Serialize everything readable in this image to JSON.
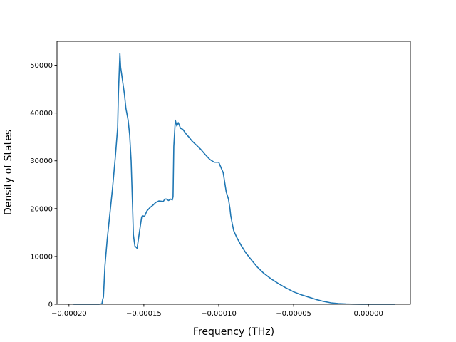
{
  "chart_data": {
    "type": "line",
    "title": "",
    "xlabel": "Frequency (THz)",
    "ylabel": "Density of States",
    "xlim": [
      -0.000208,
      2.8e-05
    ],
    "ylim": [
      0,
      55000
    ],
    "grid": false,
    "legend": "none",
    "x_ticks": [
      {
        "value": -0.0002,
        "label": "−0.00020"
      },
      {
        "value": -0.00015,
        "label": "−0.00015"
      },
      {
        "value": -0.0001,
        "label": "−0.00010"
      },
      {
        "value": -5e-05,
        "label": "−0.00005"
      },
      {
        "value": 0,
        "label": "0.00000"
      }
    ],
    "y_ticks": [
      {
        "value": 0,
        "label": "0"
      },
      {
        "value": 10000,
        "label": "10000"
      },
      {
        "value": 20000,
        "label": "20000"
      },
      {
        "value": 30000,
        "label": "30000"
      },
      {
        "value": 40000,
        "label": "40000"
      },
      {
        "value": 50000,
        "label": "50000"
      }
    ],
    "series": [
      {
        "color": "#1f77b4",
        "x": [
          -0.000197,
          -0.00018,
          -0.000178,
          -0.0001775,
          -0.000177,
          -0.000176,
          -0.0001745,
          -0.000173,
          -0.000171,
          -0.000169,
          -0.0001675,
          -0.000167,
          -0.000166,
          -0.0001655,
          -0.000165,
          -0.000163,
          -0.000162,
          -0.0001605,
          -0.0001595,
          -0.0001585,
          -0.0001575,
          -0.000157,
          -0.000156,
          -0.0001545,
          -0.000153,
          -0.0001515,
          -0.000151,
          -0.0001495,
          -0.000148,
          -0.000146,
          -0.000144,
          -0.000142,
          -0.00014,
          -0.000137,
          -0.000136,
          -0.000135,
          -0.0001335,
          -0.000132,
          -0.000131,
          -0.0001305,
          -0.00013,
          -0.000129,
          -0.000128,
          -0.000127,
          -0.0001255,
          -0.000124,
          -0.000122,
          -0.00012,
          -0.000118,
          -0.000115,
          -0.000112,
          -0.000109,
          -0.000106,
          -0.000103,
          -0.0001,
          -9.7e-05,
          -9.5e-05,
          -9.35e-05,
          -9.25e-05,
          -9.2e-05,
          -9.1e-05,
          -9e-05,
          -8.8e-05,
          -8.5e-05,
          -8.2e-05,
          -7.8e-05,
          -7.4e-05,
          -7e-05,
          -6.5e-05,
          -6e-05,
          -5.5e-05,
          -5e-05,
          -4.5e-05,
          -4e-05,
          -3.5e-05,
          -3e-05,
          -2.5e-05,
          -2e-05,
          -1.5e-05,
          -1e-05,
          -5e-06,
          0,
          5e-06,
          9e-06,
          1.4e-05,
          1.8e-05
        ],
        "y": [
          0,
          0,
          100,
          1000,
          1500,
          8000,
          13500,
          18000,
          24000,
          31000,
          37000,
          44000,
          52500,
          49500,
          48500,
          44000,
          41000,
          38500,
          35500,
          30000,
          20000,
          14500,
          12200,
          11700,
          15000,
          18200,
          18500,
          18400,
          19500,
          20200,
          20700,
          21300,
          21600,
          21500,
          22000,
          22000,
          21700,
          22000,
          21800,
          22500,
          33000,
          38500,
          37300,
          38000,
          36800,
          36600,
          35700,
          35000,
          34200,
          33300,
          32400,
          31300,
          30300,
          29700,
          29700,
          27500,
          23500,
          22000,
          20000,
          18600,
          16900,
          15400,
          14000,
          12300,
          10800,
          9200,
          7700,
          6500,
          5300,
          4300,
          3400,
          2600,
          2000,
          1500,
          1000,
          600,
          300,
          150,
          60,
          20,
          5,
          0,
          0,
          0,
          0,
          0
        ]
      }
    ]
  }
}
